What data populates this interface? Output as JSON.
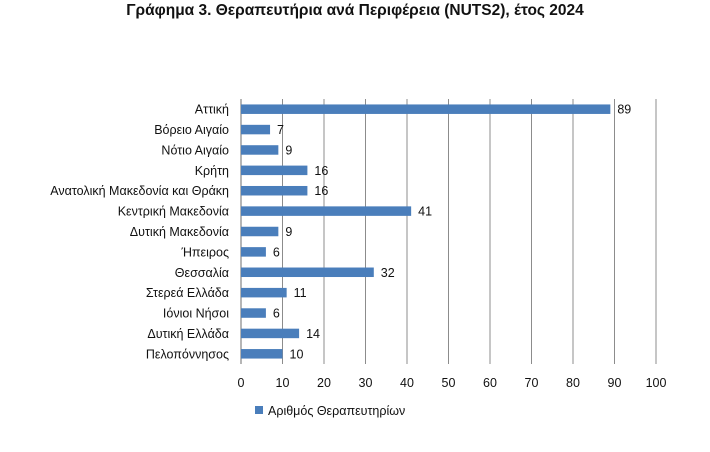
{
  "chart_data": {
    "type": "bar",
    "orientation": "horizontal",
    "title": "Γράφημα 3. Θεραπευτήρια ανά Περιφέρεια (NUTS2), έτος 2024",
    "categories": [
      "Αττική",
      "Βόρειο Αιγαίο",
      "Νότιο Αιγαίο",
      "Κρήτη",
      "Ανατολική Μακεδονία και Θράκη",
      "Κεντρική Μακεδονία",
      "Δυτική Μακεδονία",
      "Ήπειρος",
      "Θεσσαλία",
      "Στερεά Ελλάδα",
      "Ιόνιοι Νήσοι",
      "Δυτική Ελλάδα",
      "Πελοπόννησος"
    ],
    "series": [
      {
        "name": "Αριθμός Θεραπευτηρίων",
        "values": [
          89,
          7,
          9,
          16,
          16,
          41,
          9,
          6,
          32,
          11,
          6,
          14,
          10
        ]
      }
    ],
    "xlim": [
      0,
      100
    ],
    "xticks": [
      0,
      10,
      20,
      30,
      40,
      50,
      60,
      70,
      80,
      90,
      100
    ],
    "xlabel": "",
    "ylabel": "",
    "grid": "vertical",
    "legend": "bottom",
    "data_labels": true,
    "bar_color": "#4a7ebb"
  }
}
